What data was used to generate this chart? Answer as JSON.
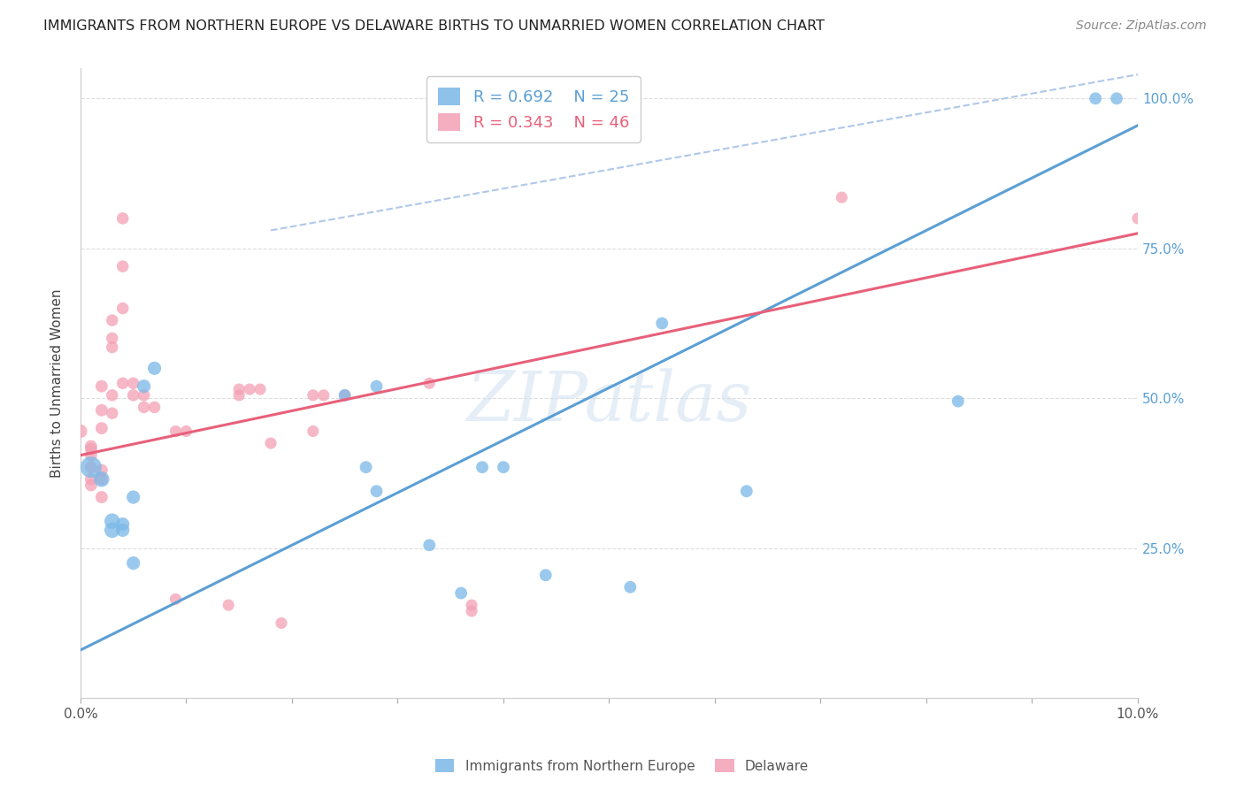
{
  "title": "IMMIGRANTS FROM NORTHERN EUROPE VS DELAWARE BIRTHS TO UNMARRIED WOMEN CORRELATION CHART",
  "source": "Source: ZipAtlas.com",
  "ylabel": "Births to Unmarried Women",
  "xlim": [
    0.0,
    0.1
  ],
  "ylim": [
    0.0,
    1.05
  ],
  "yticks": [
    0.25,
    0.5,
    0.75,
    1.0
  ],
  "ytick_labels": [
    "25.0%",
    "50.0%",
    "75.0%",
    "100.0%"
  ],
  "xticks": [
    0.0,
    0.01,
    0.02,
    0.03,
    0.04,
    0.05,
    0.06,
    0.07,
    0.08,
    0.09,
    0.1
  ],
  "xtick_labels": [
    "0.0%",
    "",
    "",
    "",
    "",
    "",
    "",
    "",
    "",
    "",
    "10.0%"
  ],
  "blue_color": "#7ab8e8",
  "pink_color": "#f4a0b5",
  "blue_line_color": "#5b9fd4",
  "pink_line_color": "#e8607a",
  "dashed_line_color": "#b0c8e8",
  "legend_r_blue": "R = 0.692",
  "legend_n_blue": "N = 25",
  "legend_r_pink": "R = 0.343",
  "legend_n_pink": "N = 46",
  "legend_label_blue": "Immigrants from Northern Europe",
  "legend_label_pink": "Delaware",
  "watermark": "ZIPatlas",
  "blue_scatter": [
    [
      0.001,
      0.385
    ],
    [
      0.002,
      0.365
    ],
    [
      0.003,
      0.295
    ],
    [
      0.003,
      0.28
    ],
    [
      0.004,
      0.29
    ],
    [
      0.004,
      0.28
    ],
    [
      0.005,
      0.225
    ],
    [
      0.005,
      0.335
    ],
    [
      0.006,
      0.52
    ],
    [
      0.007,
      0.55
    ],
    [
      0.025,
      0.505
    ],
    [
      0.027,
      0.385
    ],
    [
      0.028,
      0.345
    ],
    [
      0.028,
      0.52
    ],
    [
      0.033,
      0.255
    ],
    [
      0.036,
      0.175
    ],
    [
      0.038,
      0.385
    ],
    [
      0.04,
      0.385
    ],
    [
      0.044,
      0.205
    ],
    [
      0.052,
      0.185
    ],
    [
      0.055,
      0.625
    ],
    [
      0.063,
      0.345
    ],
    [
      0.083,
      0.495
    ],
    [
      0.096,
      1.0
    ],
    [
      0.098,
      1.0
    ]
  ],
  "pink_scatter": [
    [
      0.0,
      0.445
    ],
    [
      0.001,
      0.355
    ],
    [
      0.001,
      0.385
    ],
    [
      0.001,
      0.42
    ],
    [
      0.001,
      0.405
    ],
    [
      0.001,
      0.365
    ],
    [
      0.001,
      0.415
    ],
    [
      0.002,
      0.335
    ],
    [
      0.002,
      0.45
    ],
    [
      0.002,
      0.38
    ],
    [
      0.002,
      0.365
    ],
    [
      0.002,
      0.52
    ],
    [
      0.002,
      0.48
    ],
    [
      0.003,
      0.63
    ],
    [
      0.003,
      0.6
    ],
    [
      0.003,
      0.585
    ],
    [
      0.003,
      0.505
    ],
    [
      0.003,
      0.475
    ],
    [
      0.004,
      0.65
    ],
    [
      0.004,
      0.72
    ],
    [
      0.004,
      0.8
    ],
    [
      0.004,
      0.525
    ],
    [
      0.005,
      0.505
    ],
    [
      0.005,
      0.525
    ],
    [
      0.006,
      0.485
    ],
    [
      0.006,
      0.505
    ],
    [
      0.007,
      0.485
    ],
    [
      0.009,
      0.445
    ],
    [
      0.009,
      0.165
    ],
    [
      0.01,
      0.445
    ],
    [
      0.014,
      0.155
    ],
    [
      0.015,
      0.515
    ],
    [
      0.015,
      0.505
    ],
    [
      0.016,
      0.515
    ],
    [
      0.017,
      0.515
    ],
    [
      0.018,
      0.425
    ],
    [
      0.019,
      0.125
    ],
    [
      0.022,
      0.505
    ],
    [
      0.022,
      0.445
    ],
    [
      0.023,
      0.505
    ],
    [
      0.025,
      0.505
    ],
    [
      0.033,
      0.525
    ],
    [
      0.037,
      0.145
    ],
    [
      0.037,
      0.155
    ],
    [
      0.072,
      0.835
    ],
    [
      0.1,
      0.8
    ]
  ],
  "blue_trend_x": [
    0.0,
    0.1
  ],
  "blue_trend_y": [
    0.08,
    0.955
  ],
  "pink_trend_x": [
    0.0,
    0.1
  ],
  "pink_trend_y": [
    0.405,
    0.775
  ],
  "dashed_trend_x": [
    0.018,
    0.1
  ],
  "dashed_trend_y": [
    0.78,
    1.04
  ]
}
